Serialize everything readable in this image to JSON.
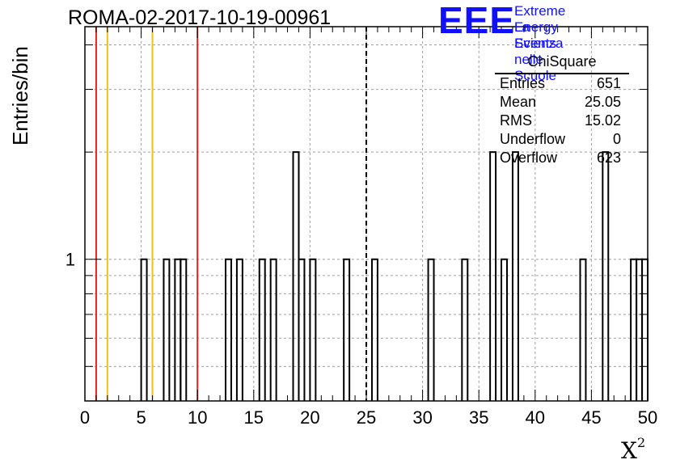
{
  "chart_data": {
    "type": "bar",
    "title": "ROMA-02-2017-10-19-00961",
    "xlabel": "X",
    "xlabel_superscript": "2",
    "ylabel": "Entries/bin",
    "xlim": [
      0,
      50
    ],
    "ylim": [
      0.4,
      4.5
    ],
    "yscale": "log",
    "grid": true,
    "x_ticks": [
      "0",
      "5",
      "10",
      "15",
      "20",
      "25",
      "30",
      "35",
      "40",
      "45",
      "50"
    ],
    "y_ticks": [
      "1"
    ],
    "bin_width": 0.5,
    "bin_lows": [
      5,
      7,
      8,
      8.5,
      12.5,
      13.5,
      15.5,
      16.5,
      18.5,
      19,
      20,
      23,
      25.5,
      30.5,
      33.5,
      36,
      37,
      38,
      44,
      46,
      48.5,
      49,
      49.5
    ],
    "counts": [
      1,
      1,
      1,
      1,
      1,
      1,
      1,
      1,
      2,
      1,
      1,
      1,
      1,
      1,
      1,
      2,
      1,
      2,
      1,
      2,
      1,
      1,
      1
    ],
    "reference_lines": [
      {
        "x": 1,
        "color": "#e8231c",
        "style": "solid"
      },
      {
        "x": 2,
        "color": "#f2c01a",
        "style": "solid"
      },
      {
        "x": 6,
        "color": "#f2c01a",
        "style": "solid"
      },
      {
        "x": 10,
        "color": "#e8231c",
        "style": "solid"
      },
      {
        "x": 25,
        "color": "#000000",
        "style": "dashed"
      }
    ],
    "stats_box": {
      "title": "ChiSquare",
      "rows": [
        {
          "label": "Entries",
          "value": "651"
        },
        {
          "label": "Mean",
          "value": "25.05"
        },
        {
          "label": "RMS",
          "value": "15.02"
        },
        {
          "label": "Underflow",
          "value": "0"
        },
        {
          "label": "Overflow",
          "value": "623"
        }
      ]
    }
  },
  "logo": {
    "mark": "EEE",
    "line1": "Extreme Energy Events",
    "line2": "La Scienza nelle Scuole",
    "color": "#1010ff"
  }
}
